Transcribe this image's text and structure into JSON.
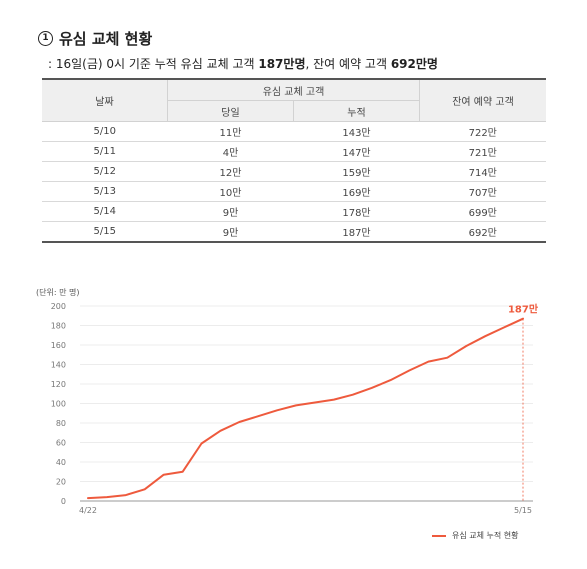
{
  "heading": {
    "number": "1",
    "title": "유심 교체 현황"
  },
  "summary": {
    "prefix": ": 16일(금) 0시 기준 누적 유심 교체 고객 ",
    "cumulative": "187만명",
    "middle": ", 잔여 예약 고객 ",
    "remaining": "692만명"
  },
  "table": {
    "headers": {
      "date": "날짜",
      "group": "유심 교체 고객",
      "daily": "당일",
      "cumulative": "누적",
      "remaining": "잔여 예약 고객"
    },
    "rows": [
      {
        "date": "5/10",
        "daily": "11만",
        "cumulative": "143만",
        "remaining": "722만"
      },
      {
        "date": "5/11",
        "daily": "4만",
        "cumulative": "147만",
        "remaining": "721만"
      },
      {
        "date": "5/12",
        "daily": "12만",
        "cumulative": "159만",
        "remaining": "714만"
      },
      {
        "date": "5/13",
        "daily": "10만",
        "cumulative": "169만",
        "remaining": "707만"
      },
      {
        "date": "5/14",
        "daily": "9만",
        "cumulative": "178만",
        "remaining": "699만"
      },
      {
        "date": "5/15",
        "daily": "9만",
        "cumulative": "187만",
        "remaining": "692만"
      }
    ]
  },
  "chart_data": {
    "type": "line",
    "unit_label": "(단위: 만 명)",
    "x_tick_labels": [
      "4/22",
      "5/15"
    ],
    "ylim": [
      0,
      200
    ],
    "y_ticks": [
      0,
      20,
      40,
      60,
      80,
      100,
      120,
      140,
      160,
      180,
      200
    ],
    "grid": true,
    "legend_position": "bottom-right",
    "end_annotation": "187만",
    "color": "#ee5a3d",
    "series": [
      {
        "name": "유심 교체 누적 현황",
        "x": [
          "4/22",
          "4/23",
          "4/24",
          "4/25",
          "4/26",
          "4/27",
          "4/28",
          "4/29",
          "4/30",
          "5/1",
          "5/2",
          "5/3",
          "5/4",
          "5/5",
          "5/6",
          "5/7",
          "5/8",
          "5/9",
          "5/10",
          "5/11",
          "5/12",
          "5/13",
          "5/14",
          "5/15"
        ],
        "values": [
          3,
          4,
          6,
          12,
          27,
          30,
          59,
          72,
          81,
          87,
          93,
          98,
          101,
          104,
          109,
          116,
          124,
          134,
          143,
          147,
          159,
          169,
          178,
          187
        ]
      }
    ]
  }
}
